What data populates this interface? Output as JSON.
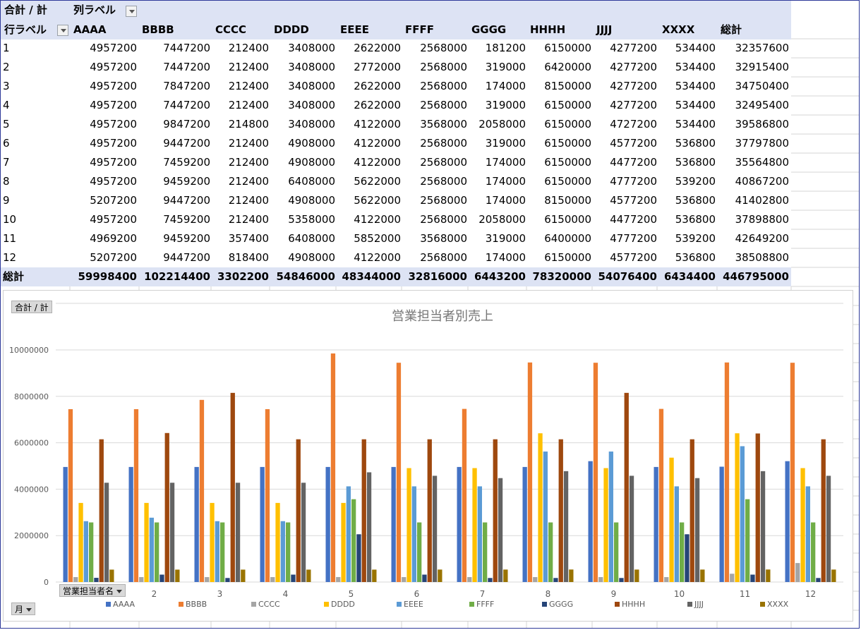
{
  "pivot": {
    "title_cell": "合計 / 計",
    "col_label_cell": "列ラベル",
    "row_label_cell": "行ラベル",
    "columns": [
      "AAAA",
      "BBBB",
      "CCCC",
      "DDDD",
      "EEEE",
      "FFFF",
      "GGGG",
      "HHHH",
      "JJJJ",
      "XXXX",
      "総計"
    ],
    "rows": [
      {
        "label": "1",
        "values": [
          "4957200",
          "7447200",
          "212400",
          "3408000",
          "2622000",
          "2568000",
          "181200",
          "6150000",
          "4277200",
          "534400",
          "32357600"
        ]
      },
      {
        "label": "2",
        "values": [
          "4957200",
          "7447200",
          "212400",
          "3408000",
          "2772000",
          "2568000",
          "319000",
          "6420000",
          "4277200",
          "534400",
          "32915400"
        ]
      },
      {
        "label": "3",
        "values": [
          "4957200",
          "7847200",
          "212400",
          "3408000",
          "2622000",
          "2568000",
          "174000",
          "8150000",
          "4277200",
          "534400",
          "34750400"
        ]
      },
      {
        "label": "4",
        "values": [
          "4957200",
          "7447200",
          "212400",
          "3408000",
          "2622000",
          "2568000",
          "319000",
          "6150000",
          "4277200",
          "534400",
          "32495400"
        ]
      },
      {
        "label": "5",
        "values": [
          "4957200",
          "9847200",
          "214800",
          "3408000",
          "4122000",
          "3568000",
          "2058000",
          "6150000",
          "4727200",
          "534400",
          "39586800"
        ]
      },
      {
        "label": "6",
        "values": [
          "4957200",
          "9447200",
          "212400",
          "4908000",
          "4122000",
          "2568000",
          "319000",
          "6150000",
          "4577200",
          "536800",
          "37797800"
        ]
      },
      {
        "label": "7",
        "values": [
          "4957200",
          "7459200",
          "212400",
          "4908000",
          "4122000",
          "2568000",
          "174000",
          "6150000",
          "4477200",
          "536800",
          "35564800"
        ]
      },
      {
        "label": "8",
        "values": [
          "4957200",
          "9459200",
          "212400",
          "6408000",
          "5622000",
          "2568000",
          "174000",
          "6150000",
          "4777200",
          "539200",
          "40867200"
        ]
      },
      {
        "label": "9",
        "values": [
          "5207200",
          "9447200",
          "212400",
          "4908000",
          "5622000",
          "2568000",
          "174000",
          "8150000",
          "4577200",
          "536800",
          "41402800"
        ]
      },
      {
        "label": "10",
        "values": [
          "4957200",
          "7459200",
          "212400",
          "5358000",
          "4122000",
          "2568000",
          "2058000",
          "6150000",
          "4477200",
          "536800",
          "37898800"
        ]
      },
      {
        "label": "11",
        "values": [
          "4969200",
          "9459200",
          "357400",
          "6408000",
          "5852000",
          "3568000",
          "319000",
          "6400000",
          "4777200",
          "539200",
          "42649200"
        ]
      },
      {
        "label": "12",
        "values": [
          "5207200",
          "9447200",
          "818400",
          "4908000",
          "4122000",
          "2568000",
          "174000",
          "6150000",
          "4577200",
          "536800",
          "38508800"
        ]
      }
    ],
    "total_row": {
      "label": "総計",
      "values": [
        "59998400",
        "102214400",
        "3302200",
        "54846000",
        "48344000",
        "32816000",
        "6443200",
        "78320000",
        "54076400",
        "6434400",
        "446795000"
      ]
    }
  },
  "chart_buttons": {
    "value_field": "合計 / 計",
    "legend_field": "営業担当者名",
    "axis_field": "月"
  },
  "chart_data": {
    "type": "bar",
    "title": "営業担当者別売上",
    "xlabel": "",
    "ylabel": "",
    "ylim": [
      0,
      10000000
    ],
    "yticks": [
      "0",
      "2000000",
      "4000000",
      "6000000",
      "8000000",
      "10000000"
    ],
    "categories": [
      "1",
      "2",
      "3",
      "4",
      "5",
      "6",
      "7",
      "8",
      "9",
      "10",
      "11",
      "12"
    ],
    "grid": true,
    "legend_position": "bottom",
    "series": [
      {
        "name": "AAAA",
        "color": "#4472c4",
        "values": [
          4957200,
          4957200,
          4957200,
          4957200,
          4957200,
          4957200,
          4957200,
          4957200,
          5207200,
          4957200,
          4969200,
          5207200
        ]
      },
      {
        "name": "BBBB",
        "color": "#ed7d31",
        "values": [
          7447200,
          7447200,
          7847200,
          7447200,
          9847200,
          9447200,
          7459200,
          9459200,
          9447200,
          7459200,
          9459200,
          9447200
        ]
      },
      {
        "name": "CCCC",
        "color": "#a5a5a5",
        "values": [
          212400,
          212400,
          212400,
          212400,
          214800,
          212400,
          212400,
          212400,
          212400,
          212400,
          357400,
          818400
        ]
      },
      {
        "name": "DDDD",
        "color": "#ffc000",
        "values": [
          3408000,
          3408000,
          3408000,
          3408000,
          3408000,
          4908000,
          4908000,
          6408000,
          4908000,
          5358000,
          6408000,
          4908000
        ]
      },
      {
        "name": "EEEE",
        "color": "#5b9bd5",
        "values": [
          2622000,
          2772000,
          2622000,
          2622000,
          4122000,
          4122000,
          4122000,
          5622000,
          5622000,
          4122000,
          5852000,
          4122000
        ]
      },
      {
        "name": "FFFF",
        "color": "#70ad47",
        "values": [
          2568000,
          2568000,
          2568000,
          2568000,
          3568000,
          2568000,
          2568000,
          2568000,
          2568000,
          2568000,
          3568000,
          2568000
        ]
      },
      {
        "name": "GGGG",
        "color": "#264478",
        "values": [
          181200,
          319000,
          174000,
          319000,
          2058000,
          319000,
          174000,
          174000,
          174000,
          2058000,
          319000,
          174000
        ]
      },
      {
        "name": "HHHH",
        "color": "#9e480e",
        "values": [
          6150000,
          6420000,
          8150000,
          6150000,
          6150000,
          6150000,
          6150000,
          6150000,
          8150000,
          6150000,
          6400000,
          6150000
        ]
      },
      {
        "name": "JJJJ",
        "color": "#636363",
        "values": [
          4277200,
          4277200,
          4277200,
          4277200,
          4727200,
          4577200,
          4477200,
          4777200,
          4577200,
          4477200,
          4777200,
          4577200
        ]
      },
      {
        "name": "XXXX",
        "color": "#997300",
        "values": [
          534400,
          534400,
          534400,
          534400,
          534400,
          536800,
          536800,
          539200,
          536800,
          536800,
          539200,
          536800
        ]
      }
    ]
  },
  "colors": {
    "header_band": "#dde3f4",
    "gridline": "#d4d4d4",
    "frame": "#2e3a9a"
  }
}
